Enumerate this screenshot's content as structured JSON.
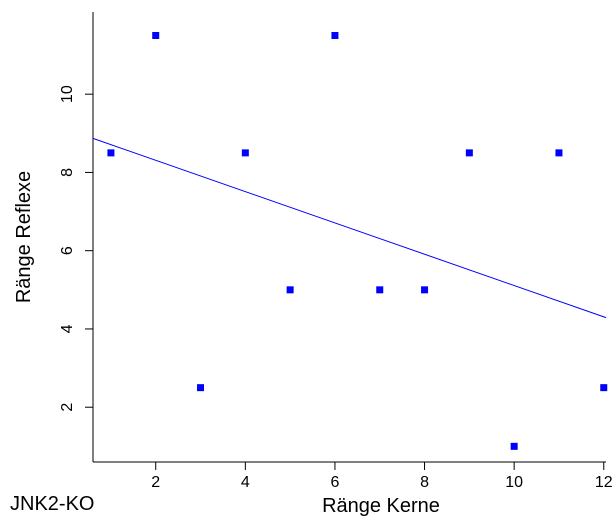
{
  "chart_data": {
    "type": "scatter",
    "xlabel": "Ränge Kerne",
    "ylabel": "Ränge Reflexe",
    "xlim": [
      0.6,
      12.05
    ],
    "ylim": [
      0.6,
      12.1
    ],
    "xticks": [
      2,
      4,
      6,
      8,
      10,
      12
    ],
    "yticks": [
      2,
      4,
      6,
      8,
      10
    ],
    "points": [
      {
        "x": 1,
        "y": 8.5
      },
      {
        "x": 2,
        "y": 11.5
      },
      {
        "x": 3,
        "y": 2.5
      },
      {
        "x": 4,
        "y": 8.5
      },
      {
        "x": 5,
        "y": 5
      },
      {
        "x": 6,
        "y": 11.5
      },
      {
        "x": 7,
        "y": 5
      },
      {
        "x": 8,
        "y": 5
      },
      {
        "x": 9,
        "y": 8.5
      },
      {
        "x": 10,
        "y": 1
      },
      {
        "x": 11,
        "y": 8.5
      },
      {
        "x": 12,
        "y": 2.5
      }
    ],
    "trendline": {
      "intercept": 9.11,
      "slope": -0.4
    },
    "colors": {
      "points": "#0000ff",
      "trendline": "#0000ff",
      "axis": "#000000"
    },
    "grid": false,
    "legend": "none"
  },
  "corner_label": "JNK2-KO"
}
